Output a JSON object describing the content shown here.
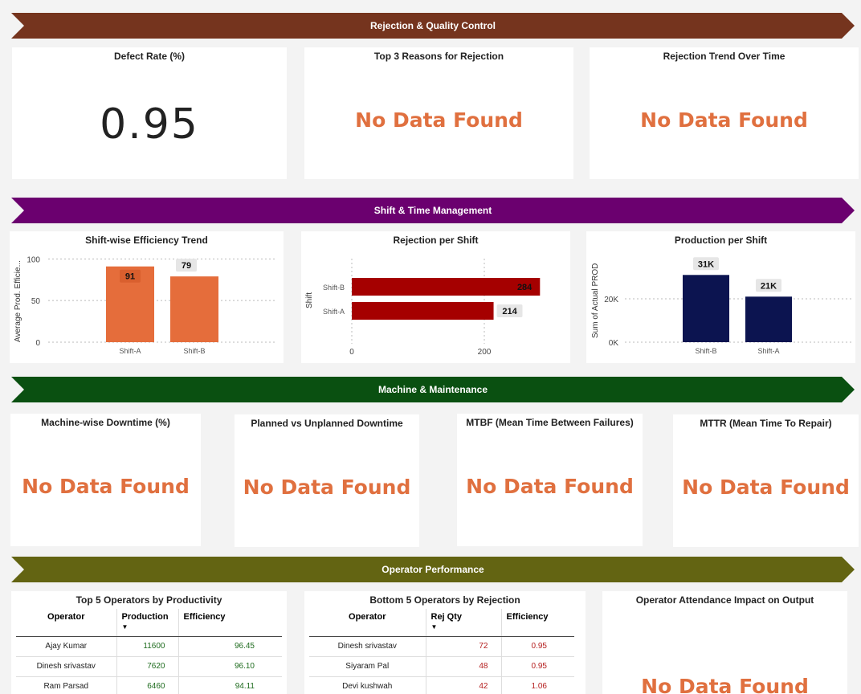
{
  "sections": {
    "rejection": {
      "title": "Rejection & Quality Control",
      "color": "#75341e"
    },
    "shift": {
      "title": "Shift & Time Management",
      "color": "#6b006f"
    },
    "machine": {
      "title": "Machine & Maintenance",
      "color": "#0a5011"
    },
    "operator": {
      "title": "Operator Performance",
      "color": "#636412"
    }
  },
  "defect_rate": {
    "title": "Defect Rate (%)",
    "value": "0.95"
  },
  "top3_reasons": {
    "title": "Top 3 Reasons for Rejection",
    "message": "No Data Found"
  },
  "rejection_trend": {
    "title": "Rejection Trend Over Time",
    "message": "No Data Found"
  },
  "machine_downtime": {
    "title": "Machine-wise Downtime (%)",
    "message": "No Data Found"
  },
  "planned_unplanned": {
    "title": "Planned vs Unplanned Downtime",
    "message": "No Data Found"
  },
  "mtbf": {
    "title": "MTBF (Mean Time Between Failures)",
    "message": "No Data Found"
  },
  "mttr": {
    "title": "MTTR (Mean Time To Repair)",
    "message": "No Data Found"
  },
  "attendance": {
    "title": "Operator Attendance Impact on Output",
    "message": "No Data Found"
  },
  "chart_data": [
    {
      "type": "bar",
      "title": "Shift-wise Efficiency Trend",
      "categories": [
        "Shift-A",
        "Shift-B"
      ],
      "values": [
        91,
        79
      ],
      "labels": [
        "91",
        "79"
      ],
      "ylabel": "Average Prod. Efficie...",
      "yticks": [
        "0",
        "50",
        "100"
      ],
      "ylim": [
        0,
        110
      ],
      "color": "#e56d3b"
    },
    {
      "type": "bar",
      "orientation": "horizontal",
      "title": "Rejection per Shift",
      "categories": [
        "Shift-B",
        "Shift-A"
      ],
      "values": [
        284,
        214
      ],
      "labels": [
        "284",
        "214"
      ],
      "ylabel": "Shift",
      "xticks": [
        "0",
        "200"
      ],
      "xlim": [
        0,
        300
      ],
      "color": "#a50000"
    },
    {
      "type": "bar",
      "title": "Production per Shift",
      "categories": [
        "Shift-B",
        "Shift-A"
      ],
      "values": [
        31000,
        21000
      ],
      "labels": [
        "31K",
        "21K"
      ],
      "ylabel": "Sum of Actual PROD",
      "yticks": [
        "0K",
        "20K"
      ],
      "ylim": [
        0,
        35000
      ],
      "color": "#0c1450"
    }
  ],
  "top5": {
    "title": "Top 5 Operators by Productivity",
    "headers": [
      "Operator",
      "Production",
      "Efficiency"
    ],
    "rows": [
      [
        "Ajay Kumar",
        "11600",
        "96.45"
      ],
      [
        "Dinesh srivastav",
        "7620",
        "96.10"
      ],
      [
        "Ram Parsad",
        "6460",
        "94.11"
      ]
    ],
    "value_color": "#1e6b1e"
  },
  "bottom5": {
    "title": "Bottom 5 Operators by Rejection",
    "headers": [
      "Operator",
      "Rej Qty",
      "Efficiency"
    ],
    "rows": [
      [
        "Dinesh srivastav",
        "72",
        "0.95"
      ],
      [
        "Siyaram Pal",
        "48",
        "0.95"
      ],
      [
        "Devi kushwah",
        "42",
        "1.06"
      ]
    ],
    "value_color": "#b52020"
  }
}
